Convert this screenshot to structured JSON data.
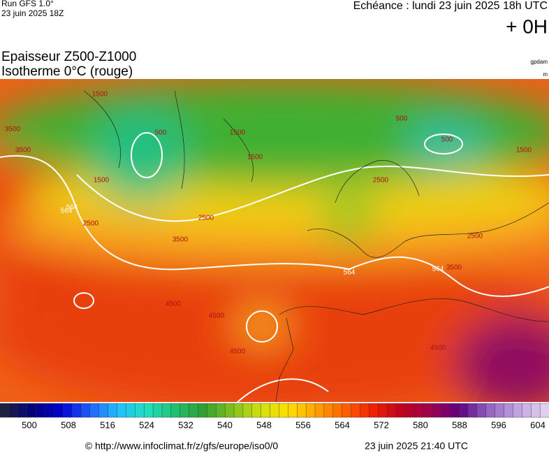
{
  "header": {
    "run": "Run GFS 1.0°",
    "run_date": "23 juin 2025 18Z",
    "echeance": "Echéance : lundi 23 juin 2025 18h UTC",
    "offset": "+ 0H",
    "title1": "Epaisseur Z500-Z1000",
    "title2": "Isotherme 0°C (rouge)",
    "unit1": "gpdam",
    "unit2": "m"
  },
  "map": {
    "labels": [
      "1500",
      "3500",
      "1500",
      "500",
      "1500",
      "1500",
      "500",
      "500",
      "1500",
      "564",
      "3500",
      "2500",
      "2500",
      "3500",
      "2500",
      "564",
      "2500",
      "564",
      "4500",
      "4500",
      "4500",
      "564",
      "4500",
      "3500"
    ]
  },
  "scale": {
    "labels": [
      "500",
      "508",
      "516",
      "524",
      "532",
      "540",
      "548",
      "556",
      "564",
      "572",
      "580",
      "588",
      "596",
      "604"
    ]
  },
  "footer": {
    "url": "© http://www.infoclimat.fr/z/gfs/europe/iso0/0",
    "generated": "23 juin 2025 21:40 UTC"
  }
}
